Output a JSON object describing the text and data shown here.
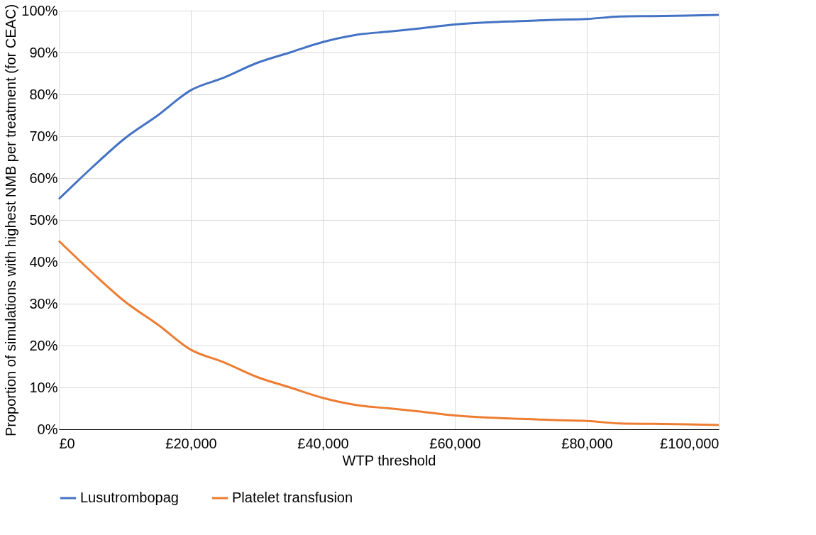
{
  "chart_data": {
    "type": "line",
    "xlabel": "WTP threshold",
    "ylabel": "Proportion of simulations with highest NMB per treatment (for CEAC)",
    "x": [
      0,
      5000,
      10000,
      15000,
      20000,
      25000,
      30000,
      35000,
      40000,
      45000,
      50000,
      55000,
      60000,
      65000,
      70000,
      75000,
      80000,
      85000,
      90000,
      95000,
      100000
    ],
    "series": [
      {
        "name": "Lusutrombopag",
        "color": "#4472c4",
        "values": [
          55,
          62.5,
          69.5,
          75,
          81,
          84,
          87.5,
          90,
          92.5,
          94.2,
          95,
          95.8,
          96.7,
          97.2,
          97.5,
          97.8,
          98,
          98.6,
          98.7,
          98.8,
          99
        ]
      },
      {
        "name": "Platelet transfusion",
        "color": "#ed7d31",
        "values": [
          45,
          37.5,
          30.5,
          25,
          19,
          16,
          12.5,
          10,
          7.5,
          5.8,
          5,
          4.2,
          3.3,
          2.8,
          2.5,
          2.2,
          2,
          1.4,
          1.3,
          1.2,
          1
        ]
      }
    ],
    "xlim": [
      0,
      100000
    ],
    "xticks": [
      {
        "value": 0,
        "label": "£0"
      },
      {
        "value": 20000,
        "label": "£20,000"
      },
      {
        "value": 40000,
        "label": "£40,000"
      },
      {
        "value": 60000,
        "label": "£60,000"
      },
      {
        "value": 80000,
        "label": "£80,000"
      },
      {
        "value": 100000,
        "label": "£100,000"
      }
    ],
    "ylim": [
      0,
      100
    ],
    "yticks": [
      {
        "value": 0,
        "label": "0%"
      },
      {
        "value": 10,
        "label": "10%"
      },
      {
        "value": 20,
        "label": "20%"
      },
      {
        "value": 30,
        "label": "30%"
      },
      {
        "value": 40,
        "label": "40%"
      },
      {
        "value": 50,
        "label": "50%"
      },
      {
        "value": 60,
        "label": "60%"
      },
      {
        "value": 70,
        "label": "70%"
      },
      {
        "value": 80,
        "label": "80%"
      },
      {
        "value": 90,
        "label": "90%"
      },
      {
        "value": 100,
        "label": "100%"
      }
    ],
    "grid": true,
    "legend": "bottom",
    "marker": "none",
    "line_style": "solid"
  }
}
